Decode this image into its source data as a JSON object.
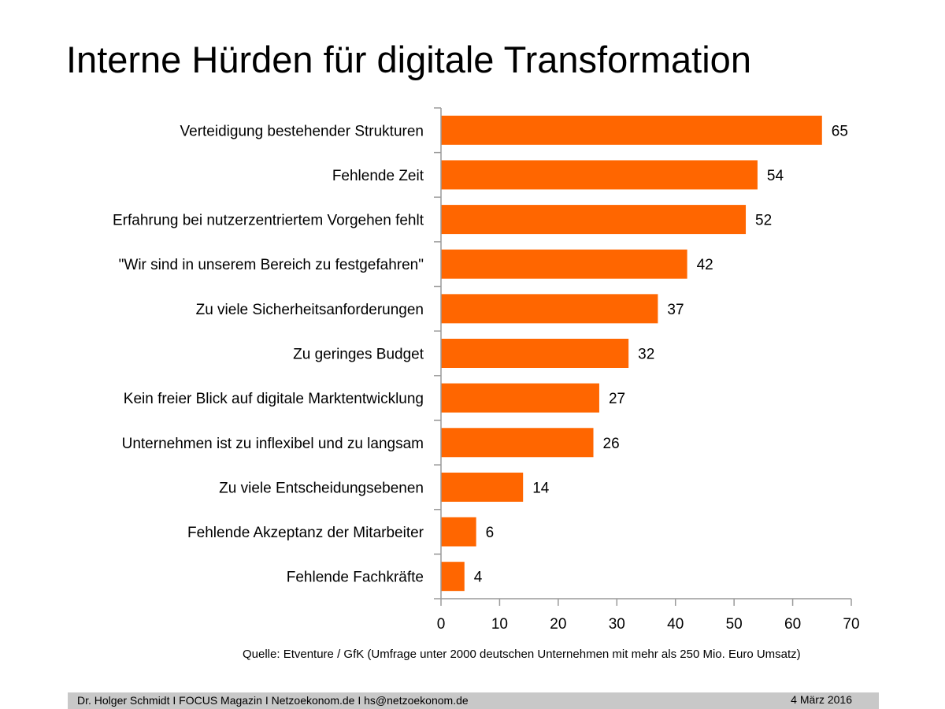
{
  "title": "Interne Hürden für digitale Transformation",
  "source": "Quelle: Etventure / GfK (Umfrage unter 2000 deutschen Unternehmen mit mehr als 250 Mio. Euro Umsatz)",
  "footer": {
    "credits": "Dr. Holger Schmidt  I  FOCUS Magazin  I  Netzoekonom.de   I   hs@netzoekonom.de",
    "date": "4 März 2016"
  },
  "colors": {
    "bar": "#ff6600",
    "axis": "#9a9a9a",
    "footer_bg": "#c8c8c8"
  },
  "chart_data": {
    "type": "bar",
    "orientation": "horizontal",
    "categories": [
      "Verteidigung bestehender Strukturen",
      "Fehlende Zeit",
      "Erfahrung bei nutzerzentriertem Vorgehen fehlt",
      "\"Wir sind in unserem Bereich zu festgefahren\"",
      "Zu viele Sicherheitsanforderungen",
      "Zu geringes Budget",
      "Kein freier Blick auf digitale Marktentwicklung",
      "Unternehmen ist zu inflexibel und zu langsam",
      "Zu viele Entscheidungsebenen",
      "Fehlende Akzeptanz der Mitarbeiter",
      "Fehlende Fachkräfte"
    ],
    "values": [
      65,
      54,
      52,
      42,
      37,
      32,
      27,
      26,
      14,
      6,
      4
    ],
    "xlim": [
      0,
      70
    ],
    "xticks": [
      0,
      10,
      20,
      30,
      40,
      50,
      60,
      70
    ],
    "data_labels": true,
    "grid": false,
    "legend": "none"
  }
}
